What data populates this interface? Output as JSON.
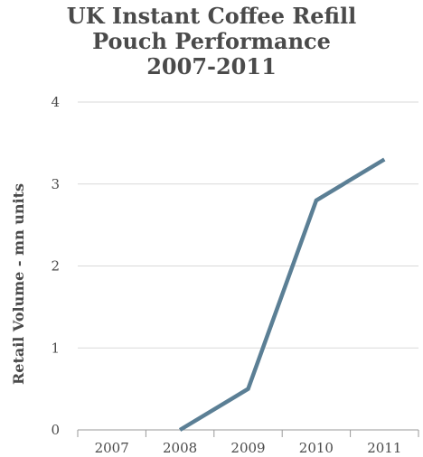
{
  "chart_data": {
    "type": "line",
    "title_lines": [
      "UK Instant Coffee Refill",
      "Pouch Performance",
      "2007-2011"
    ],
    "ylabel": "Retail Volume - mn units",
    "xlabel": "",
    "categories": [
      "2007",
      "2008",
      "2009",
      "2010",
      "2011"
    ],
    "series": [
      {
        "values": [
          null,
          0,
          0.5,
          2.8,
          3.3
        ]
      }
    ],
    "ylim": [
      0,
      4
    ],
    "yticks": [
      0,
      1,
      2,
      3,
      4
    ],
    "grid": true,
    "colors": {
      "line": "#5b7f95",
      "grid": "#d9d9d9",
      "axis": "#9a9a9a",
      "text": "#4a4a4a"
    }
  }
}
